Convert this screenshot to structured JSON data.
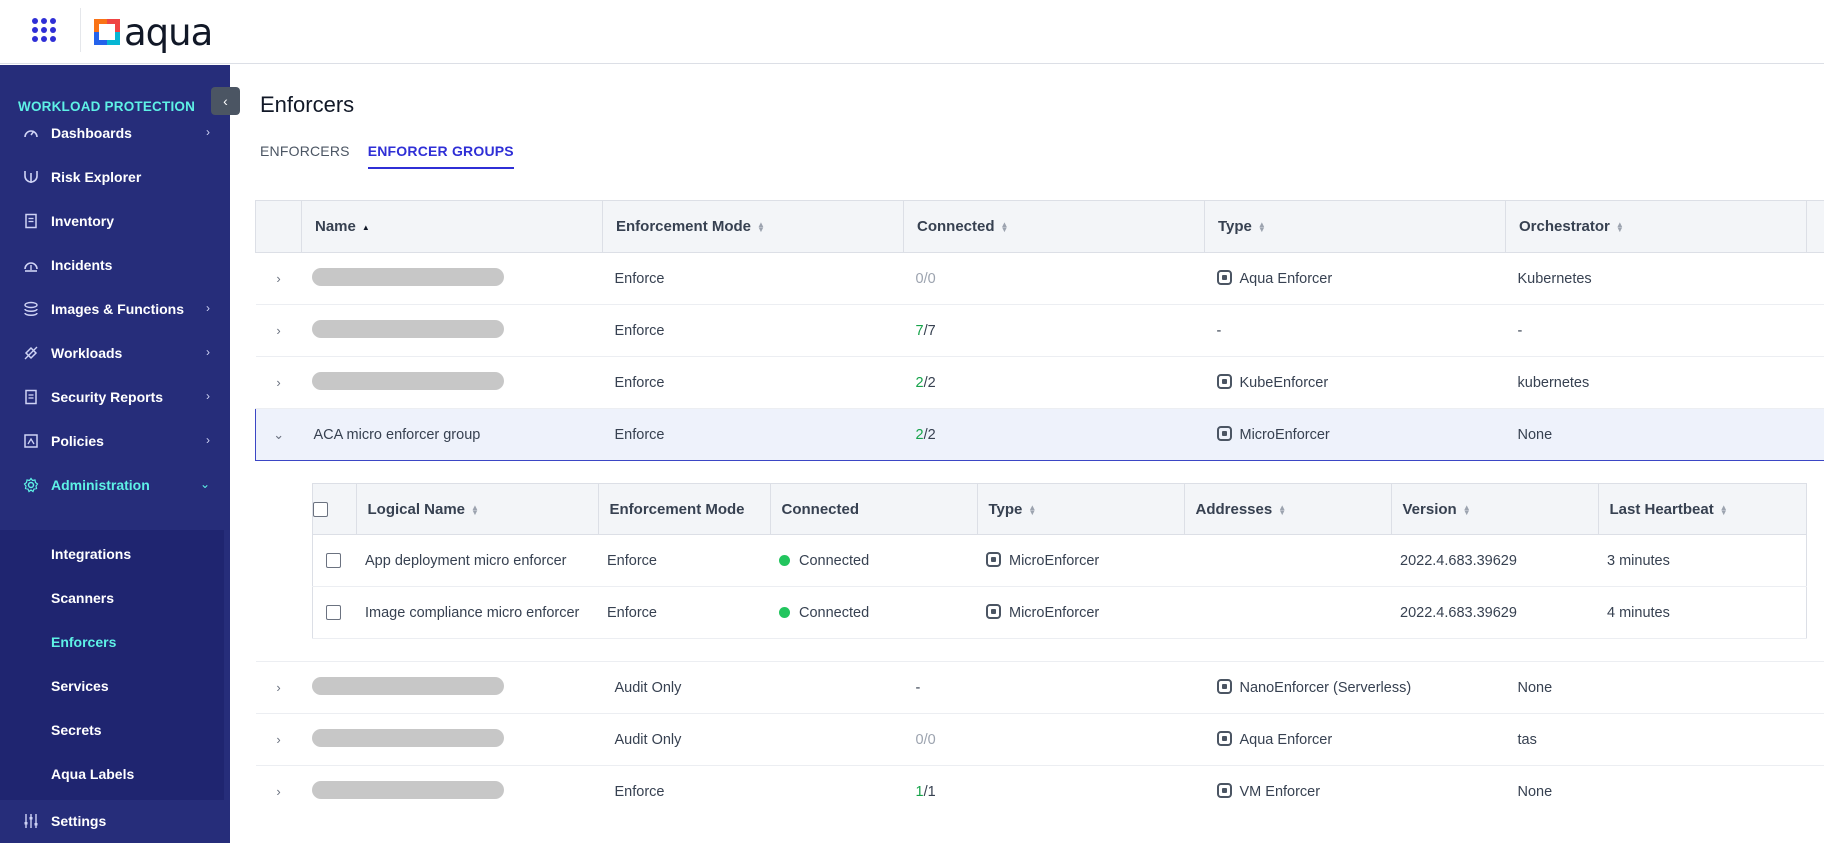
{
  "app": {
    "logo_text": "aqua"
  },
  "sidebar": {
    "section_title": "WORKLOAD PROTECTION",
    "items": [
      {
        "label": "Dashboards",
        "icon": "gauge-icon",
        "chevron": "›"
      },
      {
        "label": "Risk Explorer",
        "icon": "risk-explorer-icon",
        "chevron": ""
      },
      {
        "label": "Inventory",
        "icon": "inventory-icon",
        "chevron": ""
      },
      {
        "label": "Incidents",
        "icon": "incidents-icon",
        "chevron": ""
      },
      {
        "label": "Images & Functions",
        "icon": "layers-icon",
        "chevron": "›"
      },
      {
        "label": "Workloads",
        "icon": "workloads-icon",
        "chevron": "›"
      },
      {
        "label": "Security Reports",
        "icon": "report-icon",
        "chevron": "›"
      },
      {
        "label": "Policies",
        "icon": "policies-icon",
        "chevron": "›"
      },
      {
        "label": "Administration",
        "icon": "gear-icon",
        "chevron": "⌄"
      }
    ],
    "sub_items": [
      "Integrations",
      "Scanners",
      "Enforcers",
      "Services",
      "Secrets",
      "Aqua Labels"
    ],
    "settings_label": "Settings",
    "collapse_glyph": "‹"
  },
  "page": {
    "title": "Enforcers",
    "tabs": [
      "ENFORCERS",
      "ENFORCER GROUPS"
    ]
  },
  "groups_table": {
    "columns": [
      "Name",
      "Enforcement Mode",
      "Connected",
      "Type",
      "Orchestrator"
    ],
    "rows": [
      {
        "name": "",
        "mode": "Enforce",
        "connected_num": "0",
        "connected_total": "/0",
        "connected_ok": false,
        "type": "Aqua Enforcer",
        "orchestrator": "Kubernetes"
      },
      {
        "name": "",
        "mode": "Enforce",
        "connected_num": "7",
        "connected_total": "/7",
        "connected_ok": true,
        "type": "-",
        "orchestrator": "-"
      },
      {
        "name": "",
        "mode": "Enforce",
        "connected_num": "2",
        "connected_total": "/2",
        "connected_ok": true,
        "type": "KubeEnforcer",
        "orchestrator": "kubernetes"
      },
      {
        "name": "ACA micro enforcer group",
        "mode": "Enforce",
        "connected_num": "2",
        "connected_total": "/2",
        "connected_ok": true,
        "type": "MicroEnforcer",
        "orchestrator": "None"
      },
      {
        "name": "",
        "mode": "Audit Only",
        "connected_num": "-",
        "connected_total": "",
        "connected_ok": false,
        "type": "NanoEnforcer (Serverless)",
        "orchestrator": "None"
      },
      {
        "name": "",
        "mode": "Audit Only",
        "connected_num": "0",
        "connected_total": "/0",
        "connected_ok": false,
        "type": "Aqua Enforcer",
        "orchestrator": "tas"
      },
      {
        "name": "",
        "mode": "Enforce",
        "connected_num": "1",
        "connected_total": "/1",
        "connected_ok": true,
        "type": "VM Enforcer",
        "orchestrator": "None"
      }
    ]
  },
  "enforcers_table": {
    "columns": [
      "Logical Name",
      "Enforcement Mode",
      "Connected",
      "Type",
      "Addresses",
      "Version",
      "Last Heartbeat"
    ],
    "rows": [
      {
        "name": "App deployment micro enforcer",
        "mode": "Enforce",
        "connected": "Connected",
        "type": "MicroEnforcer",
        "addresses": "",
        "version": "2022.4.683.39629",
        "heartbeat": "3 minutes"
      },
      {
        "name": "Image compliance micro enforcer",
        "mode": "Enforce",
        "connected": "Connected",
        "type": "MicroEnforcer",
        "addresses": "",
        "version": "2022.4.683.39629",
        "heartbeat": "4 minutes"
      }
    ]
  },
  "colors": {
    "sidebar": "#262d7a",
    "accent": "#2f2fd6",
    "active_nav": "#5ef2e6",
    "connected": "#22c55e"
  }
}
